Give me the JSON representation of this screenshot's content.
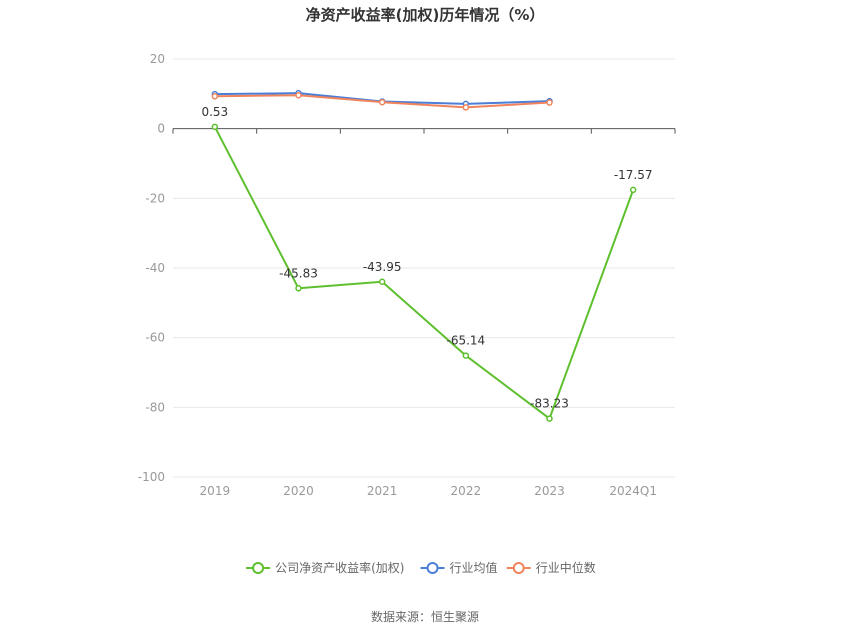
{
  "chart_data": {
    "type": "line",
    "title": "净资产收益率(加权)历年情况（%）",
    "categories": [
      "2019",
      "2020",
      "2021",
      "2022",
      "2023",
      "2024Q1"
    ],
    "ylim": [
      -100,
      20
    ],
    "yticks": [
      20,
      0,
      -20,
      -40,
      -60,
      -80,
      -100
    ],
    "grid": true,
    "legend_position": "bottom",
    "series": [
      {
        "name": "公司净资产收益率(加权)",
        "color": "#5ec02e",
        "values": [
          0.53,
          -45.83,
          -43.95,
          -65.14,
          -83.23,
          -17.57
        ],
        "labels": [
          "0.53",
          "-45.83",
          "-43.95",
          "-65.14",
          "-83.23",
          "-17.57"
        ]
      },
      {
        "name": "行业均值",
        "color": "#4b7ed6",
        "values": [
          9.9,
          10.2,
          7.8,
          7.1,
          7.9,
          null
        ]
      },
      {
        "name": "行业中位数",
        "color": "#f0845d",
        "values": [
          9.3,
          9.6,
          7.6,
          6.1,
          7.5,
          null
        ]
      }
    ],
    "source": "数据来源：恒生聚源"
  }
}
